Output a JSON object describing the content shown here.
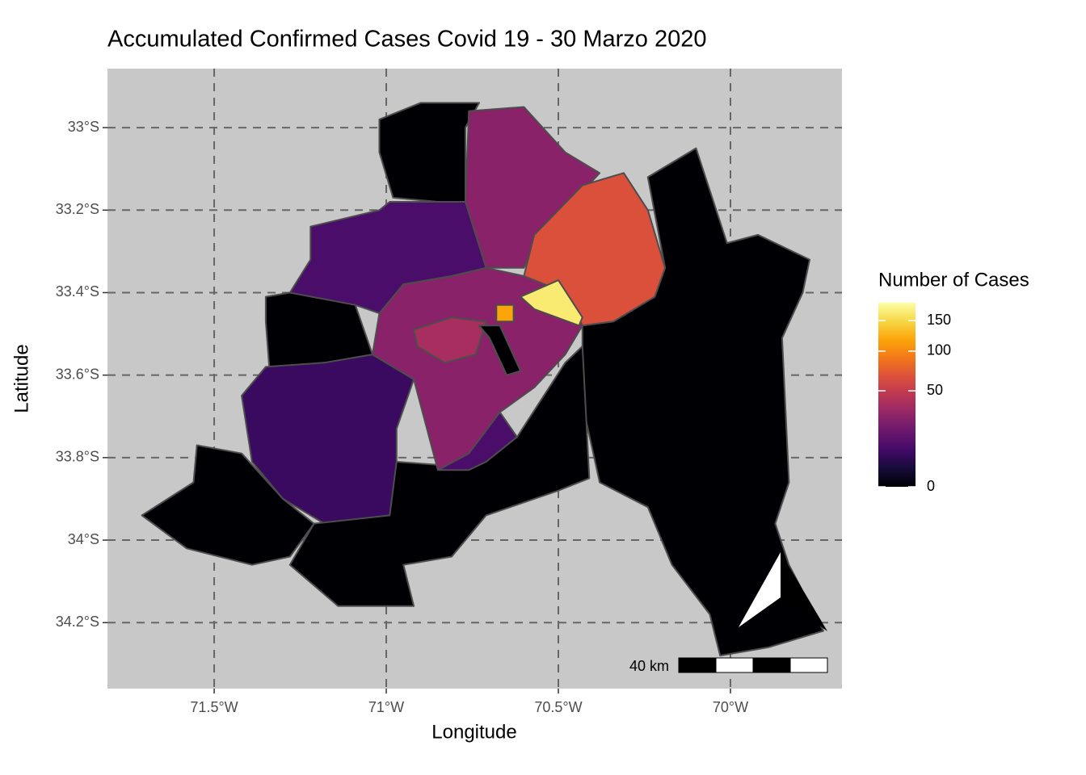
{
  "chart_data": {
    "type": "choropleth",
    "title": "Accumulated Confirmed Cases Covid 19 - 30 Marzo 2020",
    "x_label": "Longitude",
    "y_label": "Latitude",
    "xlim": [
      -71.81,
      -69.676
    ],
    "ylim": [
      -34.36,
      -32.857
    ],
    "xticks": [
      {
        "value": -71.5,
        "label": "71.5°W"
      },
      {
        "value": -71,
        "label": "71°W"
      },
      {
        "value": -70.5,
        "label": "70.5°W"
      },
      {
        "value": -70,
        "label": "70°W"
      }
    ],
    "yticks": [
      {
        "value": -33,
        "label": "33°S"
      },
      {
        "value": -33.2,
        "label": "33.2°S"
      },
      {
        "value": -33.4,
        "label": "33.4°S"
      },
      {
        "value": -33.6,
        "label": "33.6°S"
      },
      {
        "value": -33.8,
        "label": "33.8°S"
      },
      {
        "value": -34,
        "label": "34°S"
      },
      {
        "value": -34.2,
        "label": "34.2°S"
      }
    ],
    "grid": true,
    "legend": {
      "title": "Number of Cases",
      "scale": "sqrt",
      "limits": [
        0,
        184
      ],
      "ticks": [
        0,
        50,
        100,
        150
      ],
      "palette": [
        "#000004",
        "#160b39",
        "#420a68",
        "#6a176e",
        "#932667",
        "#bc3754",
        "#dd513a",
        "#f37819",
        "#fca50a",
        "#f6d746",
        "#fcffa4"
      ]
    },
    "scale_bar": "40 km",
    "regions": [
      {
        "value": 0,
        "coords": [
          [
            -70.24,
            -33.12
          ],
          [
            -70.1,
            -33.05
          ],
          [
            -70.01,
            -33.28
          ],
          [
            -69.92,
            -33.26
          ],
          [
            -69.77,
            -33.32
          ],
          [
            -69.79,
            -33.4
          ],
          [
            -69.85,
            -33.51
          ],
          [
            -69.83,
            -33.86
          ],
          [
            -69.87,
            -33.96
          ],
          [
            -69.83,
            -34.06
          ],
          [
            -69.73,
            -34.22
          ],
          [
            -69.89,
            -34.26
          ],
          [
            -70.03,
            -34.28
          ],
          [
            -70.06,
            -34.18
          ],
          [
            -70.17,
            -34.06
          ],
          [
            -70.24,
            -33.92
          ],
          [
            -70.38,
            -33.86
          ],
          [
            -70.43,
            -33.67
          ],
          [
            -70.43,
            -33.48
          ],
          [
            -70.34,
            -33.47
          ],
          [
            -70.22,
            -33.41
          ],
          [
            -70.19,
            -33.34
          ]
        ]
      },
      {
        "value": 0,
        "coords": [
          [
            -71.02,
            -32.98
          ],
          [
            -70.9,
            -32.94
          ],
          [
            -70.73,
            -32.94
          ],
          [
            -70.77,
            -33.0
          ],
          [
            -70.77,
            -33.18
          ],
          [
            -70.85,
            -33.18
          ],
          [
            -70.98,
            -33.17
          ],
          [
            -71.02,
            -33.06
          ]
        ]
      },
      {
        "value": 26,
        "coords": [
          [
            -70.76,
            -32.96
          ],
          [
            -70.6,
            -32.95
          ],
          [
            -70.48,
            -33.06
          ],
          [
            -70.38,
            -33.11
          ],
          [
            -70.48,
            -33.2
          ],
          [
            -70.57,
            -33.28
          ],
          [
            -70.6,
            -33.34
          ],
          [
            -70.71,
            -33.34
          ],
          [
            -70.77,
            -33.18
          ]
        ]
      },
      {
        "value": 65,
        "coords": [
          [
            -70.57,
            -33.26
          ],
          [
            -70.43,
            -33.14
          ],
          [
            -70.31,
            -33.11
          ],
          [
            -70.24,
            -33.2
          ],
          [
            -70.19,
            -33.34
          ],
          [
            -70.22,
            -33.41
          ],
          [
            -70.34,
            -33.47
          ],
          [
            -70.43,
            -33.48
          ],
          [
            -70.48,
            -33.4
          ],
          [
            -70.6,
            -33.36
          ]
        ]
      },
      {
        "value": 9,
        "coords": [
          [
            -71.22,
            -33.24
          ],
          [
            -71.02,
            -33.2
          ],
          [
            -70.99,
            -33.18
          ],
          [
            -70.77,
            -33.18
          ],
          [
            -70.71,
            -33.34
          ],
          [
            -70.81,
            -33.36
          ],
          [
            -70.95,
            -33.38
          ],
          [
            -71.02,
            -33.45
          ],
          [
            -71.09,
            -33.43
          ],
          [
            -71.18,
            -33.42
          ],
          [
            -71.28,
            -33.4
          ],
          [
            -71.22,
            -33.32
          ]
        ]
      },
      {
        "value": 0,
        "coords": [
          [
            -71.35,
            -33.41
          ],
          [
            -71.28,
            -33.4
          ],
          [
            -71.09,
            -33.43
          ],
          [
            -71.04,
            -33.55
          ],
          [
            -71.18,
            -33.57
          ],
          [
            -71.34,
            -33.58
          ],
          [
            -71.35,
            -33.47
          ]
        ]
      },
      {
        "value": 6,
        "coords": [
          [
            -71.42,
            -33.65
          ],
          [
            -71.35,
            -33.58
          ],
          [
            -71.18,
            -33.57
          ],
          [
            -71.04,
            -33.55
          ],
          [
            -70.92,
            -33.61
          ],
          [
            -70.97,
            -33.73
          ],
          [
            -70.97,
            -33.85
          ],
          [
            -70.99,
            -33.94
          ],
          [
            -71.18,
            -33.96
          ],
          [
            -71.3,
            -33.9
          ],
          [
            -71.39,
            -33.81
          ]
        ]
      },
      {
        "value": 0,
        "coords": [
          [
            -71.71,
            -33.94
          ],
          [
            -71.56,
            -33.86
          ],
          [
            -71.55,
            -33.77
          ],
          [
            -71.42,
            -33.79
          ],
          [
            -71.3,
            -33.9
          ],
          [
            -71.21,
            -33.96
          ],
          [
            -71.28,
            -34.04
          ],
          [
            -71.39,
            -34.06
          ],
          [
            -71.58,
            -34.02
          ]
        ]
      },
      {
        "value": 0,
        "coords": [
          [
            -71.21,
            -33.96
          ],
          [
            -70.99,
            -33.94
          ],
          [
            -70.97,
            -33.81
          ],
          [
            -70.81,
            -33.82
          ],
          [
            -70.62,
            -33.75
          ],
          [
            -70.48,
            -33.57
          ],
          [
            -70.43,
            -33.53
          ],
          [
            -70.41,
            -33.85
          ],
          [
            -70.5,
            -33.88
          ],
          [
            -70.71,
            -33.94
          ],
          [
            -70.81,
            -34.04
          ],
          [
            -70.95,
            -34.06
          ],
          [
            -70.92,
            -34.16
          ],
          [
            -71.14,
            -34.16
          ],
          [
            -71.28,
            -34.06
          ]
        ]
      },
      {
        "value": 26,
        "coords": [
          [
            -70.95,
            -33.38
          ],
          [
            -70.81,
            -33.36
          ],
          [
            -70.71,
            -33.34
          ],
          [
            -70.6,
            -33.36
          ],
          [
            -70.48,
            -33.4
          ],
          [
            -70.43,
            -33.48
          ],
          [
            -70.48,
            -33.55
          ],
          [
            -70.57,
            -33.63
          ],
          [
            -70.67,
            -33.69
          ],
          [
            -70.76,
            -33.79
          ],
          [
            -70.85,
            -33.83
          ],
          [
            -70.92,
            -33.61
          ],
          [
            -71.04,
            -33.55
          ],
          [
            -71.02,
            -33.45
          ]
        ]
      },
      {
        "value": 37,
        "coords": [
          [
            -70.92,
            -33.49
          ],
          [
            -70.81,
            -33.46
          ],
          [
            -70.71,
            -33.47
          ],
          [
            -70.74,
            -33.55
          ],
          [
            -70.83,
            -33.57
          ],
          [
            -70.91,
            -33.53
          ]
        ]
      },
      {
        "value": 9,
        "coords": [
          [
            -70.85,
            -33.83
          ],
          [
            -70.76,
            -33.79
          ],
          [
            -70.67,
            -33.69
          ],
          [
            -70.62,
            -33.75
          ],
          [
            -70.71,
            -33.81
          ],
          [
            -70.76,
            -33.83
          ]
        ]
      },
      {
        "value": 0,
        "coords": [
          [
            -70.73,
            -33.48
          ],
          [
            -70.67,
            -33.48
          ],
          [
            -70.61,
            -33.59
          ],
          [
            -70.65,
            -33.6
          ],
          [
            -70.7,
            -33.51
          ]
        ]
      },
      {
        "value": 118,
        "coords": [
          [
            -70.68,
            -33.43
          ],
          [
            -70.63,
            -33.43
          ],
          [
            -70.63,
            -33.47
          ],
          [
            -70.68,
            -33.47
          ]
        ]
      },
      {
        "value": 165,
        "coords": [
          [
            -70.61,
            -33.41
          ],
          [
            -70.5,
            -33.37
          ],
          [
            -70.43,
            -33.46
          ],
          [
            -70.44,
            -33.48
          ],
          [
            -70.57,
            -33.44
          ]
        ]
      }
    ]
  }
}
